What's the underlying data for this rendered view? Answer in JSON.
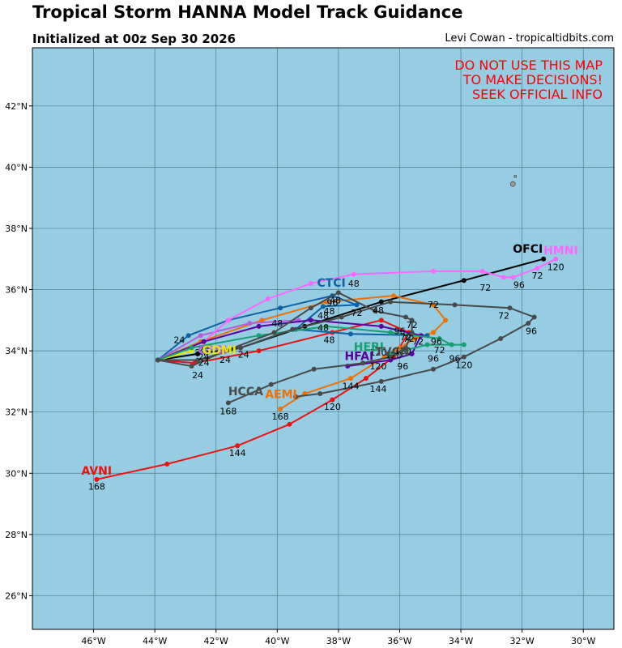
{
  "header": {
    "title": "Tropical Storm HANNA Model Track Guidance",
    "subtitle": "Initialized at 00z Sep 30 2026",
    "credit": "Levi Cowan - tropicaltidbits.com"
  },
  "warning": {
    "line1": "DO NOT USE THIS MAP",
    "line2": "TO MAKE DECISIONS!",
    "line3": "SEEK OFFICIAL INFO",
    "color": "#ff0000"
  },
  "map": {
    "ocean_color": "#96cde3",
    "grid_color": "#4a7f8f",
    "lon_range": [
      -48,
      -29
    ],
    "lat_range": [
      24.9,
      43.9
    ],
    "lon_ticks": [
      -46,
      -44,
      -42,
      -40,
      -38,
      -36,
      -34,
      -32,
      -30
    ],
    "lon_tick_labels": [
      "46°W",
      "44°W",
      "42°W",
      "40°W",
      "38°W",
      "36°W",
      "34°W",
      "32°W",
      "30°W"
    ],
    "lat_ticks": [
      26,
      28,
      30,
      32,
      34,
      36,
      38,
      40,
      42
    ],
    "lat_tick_labels": [
      "26°N",
      "28°N",
      "30°N",
      "32°N",
      "34°N",
      "36°N",
      "38°N",
      "40°N",
      "42°N"
    ],
    "islands": [
      {
        "lon": -32.3,
        "lat": 39.45
      },
      {
        "lon": -32.22,
        "lat": 39.7
      }
    ]
  },
  "models": [
    {
      "name": "OFCI",
      "color": "#000000",
      "label_color": "#000000",
      "label_pos": {
        "lon": -32.3,
        "lat": 37.2
      },
      "points": [
        [
          -43.9,
          33.7
        ],
        [
          -42.6,
          33.9
        ],
        [
          -41.2,
          34.1
        ],
        [
          -39.1,
          34.8
        ],
        [
          -36.6,
          35.6
        ],
        [
          -33.9,
          36.3
        ],
        [
          -31.3,
          37.0
        ]
      ],
      "hour_labels": [
        {
          "text": "24",
          "lon": -41.1,
          "lat": 33.78
        },
        {
          "text": "72",
          "lon": -33.2,
          "lat": 35.96
        },
        {
          "text": "120",
          "lon": -30.9,
          "lat": 36.64
        }
      ]
    },
    {
      "name": "AVNI",
      "color": "#ee1111",
      "label_color": "#ee1111",
      "label_pos": {
        "lon": -46.4,
        "lat": 29.95
      },
      "points": [
        [
          -43.9,
          33.7
        ],
        [
          -42.7,
          33.6
        ],
        [
          -40.6,
          34.0
        ],
        [
          -38.2,
          34.6
        ],
        [
          -36.6,
          35.0
        ],
        [
          -35.7,
          34.6
        ],
        [
          -36.2,
          33.8
        ],
        [
          -37.1,
          33.1
        ],
        [
          -38.2,
          32.4
        ],
        [
          -39.6,
          31.6
        ],
        [
          -41.3,
          30.9
        ],
        [
          -43.6,
          30.3
        ],
        [
          -45.9,
          29.8
        ]
      ],
      "hour_labels": [
        {
          "text": "48",
          "lon": -38.3,
          "lat": 34.25
        },
        {
          "text": "120",
          "lon": -38.2,
          "lat": 32.07
        },
        {
          "text": "144",
          "lon": -41.3,
          "lat": 30.56
        },
        {
          "text": "168",
          "lon": -45.9,
          "lat": 29.47
        }
      ]
    },
    {
      "name": "AEMI",
      "color": "#f07000",
      "label_color": "#f07000",
      "label_pos": {
        "lon": -40.4,
        "lat": 32.45
      },
      "points": [
        [
          -43.9,
          33.7
        ],
        [
          -42.5,
          34.3
        ],
        [
          -40.5,
          35.0
        ],
        [
          -38.4,
          35.6
        ],
        [
          -36.2,
          35.8
        ],
        [
          -34.9,
          35.5
        ],
        [
          -34.5,
          35.0
        ],
        [
          -34.9,
          34.6
        ],
        [
          -35.5,
          34.4
        ],
        [
          -36.0,
          34.1
        ],
        [
          -36.5,
          33.8
        ],
        [
          -37.6,
          33.1
        ],
        [
          -39.1,
          32.6
        ],
        [
          -39.9,
          32.1
        ]
      ],
      "hour_labels": [
        {
          "text": "48",
          "lon": -40.0,
          "lat": 34.8
        },
        {
          "text": "96",
          "lon": -38.2,
          "lat": 35.47
        },
        {
          "text": "72",
          "lon": -35.4,
          "lat": 34.2
        },
        {
          "text": "120",
          "lon": -36.7,
          "lat": 33.85
        },
        {
          "text": "144",
          "lon": -37.6,
          "lat": 32.75
        },
        {
          "text": "168",
          "lon": -39.9,
          "lat": 31.76
        }
      ]
    },
    {
      "name": "CTCI",
      "color": "#0f63a4",
      "label_color": "#0f63a4",
      "label_pos": {
        "lon": -38.7,
        "lat": 36.1
      },
      "points": [
        [
          -43.9,
          33.7
        ],
        [
          -42.9,
          34.5
        ],
        [
          -41.6,
          35.0
        ],
        [
          -39.9,
          35.4
        ],
        [
          -38.2,
          35.8
        ],
        [
          -37.4,
          35.5
        ],
        [
          -38.5,
          35.45
        ],
        [
          -39.4,
          34.7
        ],
        [
          -37.6,
          34.55
        ],
        [
          -35.1,
          34.5
        ]
      ],
      "hour_labels": [
        {
          "text": "48",
          "lon": -37.5,
          "lat": 36.1
        },
        {
          "text": "48",
          "lon": -38.3,
          "lat": 35.2
        },
        {
          "text": "72",
          "lon": -37.4,
          "lat": 35.14
        },
        {
          "text": "96",
          "lon": -38.2,
          "lat": 35.47
        }
      ]
    },
    {
      "name": "GFSI",
      "color": "#b85ce0",
      "label_color": "#b85ce0",
      "label_pos": {
        "lon": -42.6,
        "lat": 33.9
      },
      "points": [
        [
          -43.9,
          33.7
        ],
        [
          -42.5,
          34.5
        ],
        [
          -40.9,
          34.9
        ],
        [
          -39.3,
          35.0
        ]
      ],
      "hour_labels": []
    },
    {
      "name": "GDMI",
      "color": "#e8e800",
      "label_color": "#e8e800",
      "label_pos": {
        "lon": -42.45,
        "lat": 33.9
      },
      "points": [
        [
          -43.9,
          33.7
        ],
        [
          -42.8,
          34.0
        ]
      ],
      "hour_labels": []
    },
    {
      "name": "HMNI",
      "color": "#ff66ff",
      "label_color": "#ff66ff",
      "label_pos": {
        "lon": -31.3,
        "lat": 37.15
      },
      "points": [
        [
          -43.9,
          33.7
        ],
        [
          -42.4,
          34.3
        ],
        [
          -41.6,
          35.0
        ],
        [
          -40.3,
          35.7
        ],
        [
          -38.9,
          36.2
        ],
        [
          -37.5,
          36.5
        ],
        [
          -34.9,
          36.6
        ],
        [
          -33.3,
          36.6
        ],
        [
          -32.6,
          36.4
        ],
        [
          -32.3,
          36.4
        ],
        [
          -31.5,
          36.7
        ],
        [
          -30.9,
          37.0
        ]
      ],
      "hour_labels": [
        {
          "text": "96",
          "lon": -32.1,
          "lat": 36.06
        },
        {
          "text": "72",
          "lon": -31.5,
          "lat": 36.36
        }
      ]
    },
    {
      "name": "HFAI",
      "color": "#5b00a0",
      "label_color": "#5b00a0",
      "label_pos": {
        "lon": -37.8,
        "lat": 33.7
      },
      "points": [
        [
          -43.9,
          33.7
        ],
        [
          -42.4,
          34.3
        ],
        [
          -40.6,
          34.8
        ],
        [
          -38.9,
          35.0
        ],
        [
          -36.6,
          34.8
        ],
        [
          -35.3,
          34.5
        ],
        [
          -35.6,
          33.9
        ],
        [
          -36.3,
          33.7
        ],
        [
          -37.7,
          33.5
        ]
      ],
      "hour_labels": [
        {
          "text": "24",
          "lon": -42.4,
          "lat": 33.94
        },
        {
          "text": "96",
          "lon": -34.9,
          "lat": 33.64
        }
      ]
    },
    {
      "name": "HEBI",
      "color": "#15a070",
      "label_color": "#15a070",
      "label_pos": {
        "lon": -37.5,
        "lat": 34.0
      },
      "points": [
        [
          -43.9,
          33.7
        ],
        [
          -42.8,
          34.1
        ],
        [
          -40.6,
          34.5
        ],
        [
          -38.4,
          34.8
        ],
        [
          -36.3,
          34.6
        ],
        [
          -34.7,
          34.4
        ],
        [
          -34.3,
          34.2
        ],
        [
          -33.9,
          34.2
        ],
        [
          -35.1,
          34.2
        ],
        [
          -36.3,
          33.9
        ]
      ],
      "hour_labels": [
        {
          "text": "96",
          "lon": -34.2,
          "lat": 33.64
        },
        {
          "text": "72",
          "lon": -34.7,
          "lat": 33.93
        }
      ]
    },
    {
      "name": "HCCA",
      "color": "#4a4a4a",
      "label_color": "#4a4a4a",
      "label_pos": {
        "lon": -41.6,
        "lat": 32.55
      },
      "points": [
        [
          -43.9,
          33.7
        ],
        [
          -42.8,
          33.5
        ],
        [
          -41.7,
          34.0
        ],
        [
          -40.1,
          34.6
        ],
        [
          -38.9,
          35.4
        ],
        [
          -38.0,
          35.9
        ],
        [
          -36.8,
          35.3
        ],
        [
          -35.8,
          35.1
        ],
        [
          -35.6,
          35.0
        ],
        [
          -35.6,
          34.6
        ],
        [
          -35.8,
          34.1
        ],
        [
          -36.3,
          33.8
        ],
        [
          -37.2,
          33.6
        ],
        [
          -38.8,
          33.4
        ],
        [
          -40.2,
          32.9
        ],
        [
          -41.6,
          32.3
        ]
      ],
      "hour_labels": [
        {
          "text": "48",
          "lon": -38.5,
          "lat": 35.05
        },
        {
          "text": "48",
          "lon": -38.5,
          "lat": 34.65
        },
        {
          "text": "72",
          "lon": -35.8,
          "lat": 34.35
        },
        {
          "text": "96",
          "lon": -35.9,
          "lat": 33.4
        },
        {
          "text": "120",
          "lon": -36.7,
          "lat": 33.4
        },
        {
          "text": "168",
          "lon": -41.6,
          "lat": 31.93
        }
      ]
    },
    {
      "name": "TVCN",
      "color": "#4a4a4a",
      "label_color": "#4a4a4a",
      "label_pos": {
        "lon": -36.8,
        "lat": 33.85
      },
      "points": [
        [
          -43.9,
          33.7
        ],
        [
          -42.6,
          33.7
        ],
        [
          -41.2,
          34.1
        ],
        [
          -39.5,
          34.7
        ],
        [
          -37.9,
          35.1
        ],
        [
          -36.3,
          35.6
        ],
        [
          -34.2,
          35.5
        ],
        [
          -32.4,
          35.4
        ],
        [
          -31.6,
          35.1
        ],
        [
          -31.8,
          34.9
        ],
        [
          -32.7,
          34.4
        ],
        [
          -33.9,
          33.8
        ],
        [
          -34.9,
          33.4
        ],
        [
          -36.6,
          33.0
        ],
        [
          -38.6,
          32.6
        ],
        [
          -39.4,
          32.5
        ]
      ],
      "hour_labels": [
        {
          "text": "72",
          "lon": -32.6,
          "lat": 35.05
        },
        {
          "text": "96",
          "lon": -31.7,
          "lat": 34.55
        },
        {
          "text": "120",
          "lon": -33.9,
          "lat": 33.44
        },
        {
          "text": "144",
          "lon": -36.7,
          "lat": 32.65
        },
        {
          "text": "48",
          "lon": -36.7,
          "lat": 35.22
        }
      ]
    }
  ],
  "hour_labels_misc": [
    {
      "text": "24",
      "lon": -43.2,
      "lat": 34.25
    },
    {
      "text": "24",
      "lon": -42.4,
      "lat": 33.7
    },
    {
      "text": "24",
      "lon": -42.4,
      "lat": 33.52
    },
    {
      "text": "24",
      "lon": -42.6,
      "lat": 33.1
    },
    {
      "text": "24",
      "lon": -41.7,
      "lat": 33.6
    },
    {
      "text": "72",
      "lon": -35.6,
      "lat": 34.75
    },
    {
      "text": "72",
      "lon": -35.7,
      "lat": 34.3
    },
    {
      "text": "96",
      "lon": -36.0,
      "lat": 34.55
    },
    {
      "text": "96",
      "lon": -34.8,
      "lat": 34.2
    },
    {
      "text": "120",
      "lon": -35.9,
      "lat": 33.9
    },
    {
      "text": "120",
      "lon": -36.2,
      "lat": 33.75
    },
    {
      "text": "48",
      "lon": -38.1,
      "lat": 35.55
    },
    {
      "text": "72",
      "lon": -34.9,
      "lat": 35.4
    },
    {
      "text": "24",
      "lon": -42.5,
      "lat": 33.85
    }
  ]
}
